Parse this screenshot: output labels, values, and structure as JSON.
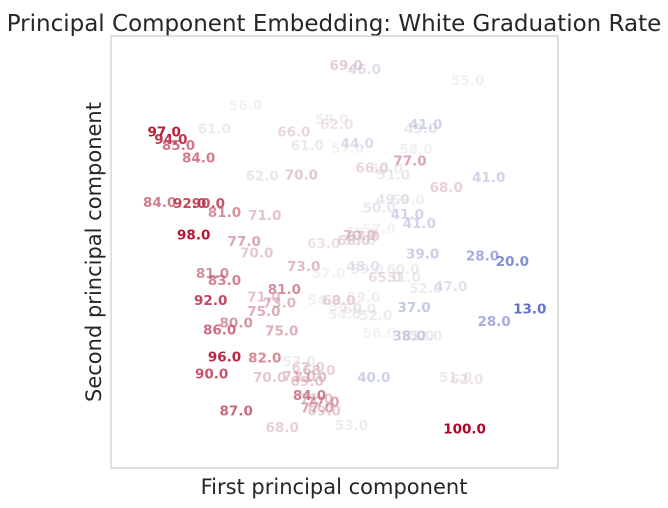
{
  "chart_data": {
    "type": "scatter",
    "title": "Principal Component Embedding: White Graduation Rate",
    "xlabel": "First principal component",
    "ylabel": "Second principal component",
    "grid": false,
    "xlim": [
      0,
      100
    ],
    "ylim": [
      0,
      100
    ],
    "color_scale": {
      "low": "#3b4cc0",
      "mid": "#dddddd",
      "high": "#b40426",
      "min_value": 13,
      "max_value": 100
    },
    "points": [
      {
        "x": 52.6,
        "y": 93.0,
        "label": "69.0"
      },
      {
        "x": 56.7,
        "y": 92.1,
        "label": "46.0"
      },
      {
        "x": 79.8,
        "y": 89.6,
        "label": "55.0"
      },
      {
        "x": 30.1,
        "y": 83.8,
        "label": "56.0"
      },
      {
        "x": 49.4,
        "y": 80.5,
        "label": "59.0"
      },
      {
        "x": 50.5,
        "y": 79.4,
        "label": "62.0"
      },
      {
        "x": 70.4,
        "y": 79.4,
        "label": "41.0"
      },
      {
        "x": 69.3,
        "y": 78.5,
        "label": "49.0"
      },
      {
        "x": 11.9,
        "y": 77.7,
        "label": "97.0"
      },
      {
        "x": 23.1,
        "y": 78.3,
        "label": "61.0"
      },
      {
        "x": 40.9,
        "y": 77.7,
        "label": "66.0"
      },
      {
        "x": 13.4,
        "y": 75.9,
        "label": "94.0"
      },
      {
        "x": 55.1,
        "y": 75.0,
        "label": "44.0"
      },
      {
        "x": 15.1,
        "y": 74.5,
        "label": "85.0"
      },
      {
        "x": 43.9,
        "y": 74.5,
        "label": "61.0"
      },
      {
        "x": 52.9,
        "y": 73.8,
        "label": "57.0"
      },
      {
        "x": 68.2,
        "y": 73.6,
        "label": "58.0"
      },
      {
        "x": 19.6,
        "y": 71.7,
        "label": "84.0"
      },
      {
        "x": 66.9,
        "y": 71.0,
        "label": "77.0"
      },
      {
        "x": 58.4,
        "y": 69.3,
        "label": "66.0"
      },
      {
        "x": 61.6,
        "y": 69.1,
        "label": "60.0"
      },
      {
        "x": 63.2,
        "y": 67.7,
        "label": "51.0"
      },
      {
        "x": 33.8,
        "y": 67.5,
        "label": "62.0"
      },
      {
        "x": 42.6,
        "y": 67.7,
        "label": "70.0"
      },
      {
        "x": 84.5,
        "y": 67.1,
        "label": "41.0"
      },
      {
        "x": 75.0,
        "y": 64.8,
        "label": "68.0"
      },
      {
        "x": 63.0,
        "y": 62.0,
        "label": "49.0"
      },
      {
        "x": 66.5,
        "y": 61.9,
        "label": "59.0"
      },
      {
        "x": 10.9,
        "y": 61.4,
        "label": "84.0"
      },
      {
        "x": 17.6,
        "y": 61.1,
        "label": "92.0"
      },
      {
        "x": 21.8,
        "y": 61.1,
        "label": "90.0"
      },
      {
        "x": 60.0,
        "y": 60.1,
        "label": "50.0"
      },
      {
        "x": 25.4,
        "y": 59.0,
        "label": "81.0"
      },
      {
        "x": 34.4,
        "y": 58.3,
        "label": "71.0"
      },
      {
        "x": 66.3,
        "y": 58.6,
        "label": "41.0"
      },
      {
        "x": 69.0,
        "y": 56.5,
        "label": "41.0"
      },
      {
        "x": 60.0,
        "y": 55.2,
        "label": "57.0"
      },
      {
        "x": 56.1,
        "y": 54.3,
        "label": "57.0"
      },
      {
        "x": 56.4,
        "y": 53.5,
        "label": "67.0"
      },
      {
        "x": 55.6,
        "y": 53.7,
        "label": "70.0"
      },
      {
        "x": 18.5,
        "y": 53.8,
        "label": "98.0"
      },
      {
        "x": 29.8,
        "y": 52.3,
        "label": "77.0"
      },
      {
        "x": 54.3,
        "y": 52.5,
        "label": "66.0"
      },
      {
        "x": 55.6,
        "y": 52.5,
        "label": "53.0"
      },
      {
        "x": 47.6,
        "y": 51.9,
        "label": "63.0"
      },
      {
        "x": 32.6,
        "y": 49.6,
        "label": "70.0"
      },
      {
        "x": 69.7,
        "y": 49.4,
        "label": "39.0"
      },
      {
        "x": 83.1,
        "y": 49.0,
        "label": "28.0"
      },
      {
        "x": 89.8,
        "y": 47.7,
        "label": "20.0"
      },
      {
        "x": 43.1,
        "y": 46.5,
        "label": "73.0"
      },
      {
        "x": 56.4,
        "y": 46.5,
        "label": "48.0"
      },
      {
        "x": 57.3,
        "y": 45.8,
        "label": "59.0"
      },
      {
        "x": 65.3,
        "y": 45.8,
        "label": "60.0"
      },
      {
        "x": 22.7,
        "y": 44.9,
        "label": "81.0"
      },
      {
        "x": 48.7,
        "y": 44.9,
        "label": "57.0"
      },
      {
        "x": 61.2,
        "y": 44.0,
        "label": "65.0"
      },
      {
        "x": 65.6,
        "y": 44.0,
        "label": "51.0"
      },
      {
        "x": 25.4,
        "y": 43.3,
        "label": "83.0"
      },
      {
        "x": 38.8,
        "y": 41.2,
        "label": "81.0"
      },
      {
        "x": 70.4,
        "y": 41.4,
        "label": "52.0"
      },
      {
        "x": 76.0,
        "y": 41.9,
        "label": "47.0"
      },
      {
        "x": 34.2,
        "y": 39.5,
        "label": "71.0"
      },
      {
        "x": 47.7,
        "y": 38.6,
        "label": "54.0"
      },
      {
        "x": 51.0,
        "y": 38.6,
        "label": "68.0"
      },
      {
        "x": 56.5,
        "y": 39.3,
        "label": "59.0"
      },
      {
        "x": 22.3,
        "y": 38.6,
        "label": "92.0"
      },
      {
        "x": 37.7,
        "y": 38.1,
        "label": "73.0"
      },
      {
        "x": 52.5,
        "y": 37.2,
        "label": "56.0"
      },
      {
        "x": 55.6,
        "y": 36.7,
        "label": "60.0"
      },
      {
        "x": 67.8,
        "y": 37.0,
        "label": "37.0"
      },
      {
        "x": 93.7,
        "y": 36.7,
        "label": "13.0"
      },
      {
        "x": 34.2,
        "y": 36.1,
        "label": "75.0"
      },
      {
        "x": 52.3,
        "y": 35.4,
        "label": "54.0"
      },
      {
        "x": 59.2,
        "y": 35.2,
        "label": "52.0"
      },
      {
        "x": 28.0,
        "y": 33.5,
        "label": "80.0"
      },
      {
        "x": 85.7,
        "y": 33.8,
        "label": "28.0"
      },
      {
        "x": 24.3,
        "y": 31.8,
        "label": "86.0"
      },
      {
        "x": 38.2,
        "y": 31.6,
        "label": "75.0"
      },
      {
        "x": 60.0,
        "y": 31.1,
        "label": "56.0"
      },
      {
        "x": 66.7,
        "y": 30.4,
        "label": "38.0"
      },
      {
        "x": 68.6,
        "y": 30.4,
        "label": "51.0"
      },
      {
        "x": 70.4,
        "y": 30.4,
        "label": "52.0"
      },
      {
        "x": 25.4,
        "y": 25.6,
        "label": "96.0"
      },
      {
        "x": 34.4,
        "y": 25.4,
        "label": "82.0"
      },
      {
        "x": 42.1,
        "y": 24.5,
        "label": "53.0"
      },
      {
        "x": 44.1,
        "y": 23.1,
        "label": "67.0"
      },
      {
        "x": 46.5,
        "y": 22.4,
        "label": "68.0"
      },
      {
        "x": 22.5,
        "y": 21.6,
        "label": "90.0"
      },
      {
        "x": 35.5,
        "y": 20.8,
        "label": "70.0"
      },
      {
        "x": 42.1,
        "y": 21.1,
        "label": "71.0"
      },
      {
        "x": 44.6,
        "y": 20.8,
        "label": "71.0"
      },
      {
        "x": 43.9,
        "y": 19.9,
        "label": "69.0"
      },
      {
        "x": 58.8,
        "y": 20.8,
        "label": "40.0"
      },
      {
        "x": 77.1,
        "y": 20.8,
        "label": "51.0"
      },
      {
        "x": 79.6,
        "y": 20.4,
        "label": "62.0"
      },
      {
        "x": 44.4,
        "y": 16.7,
        "label": "84.0"
      },
      {
        "x": 46.0,
        "y": 15.8,
        "label": "71.0"
      },
      {
        "x": 47.4,
        "y": 15.2,
        "label": "77.0"
      },
      {
        "x": 46.1,
        "y": 13.8,
        "label": "77.0"
      },
      {
        "x": 47.7,
        "y": 13.1,
        "label": "69.0"
      },
      {
        "x": 28.0,
        "y": 13.1,
        "label": "87.0"
      },
      {
        "x": 53.8,
        "y": 9.7,
        "label": "53.0"
      },
      {
        "x": 38.3,
        "y": 9.3,
        "label": "68.0"
      },
      {
        "x": 79.1,
        "y": 8.9,
        "label": "100.0"
      }
    ]
  }
}
